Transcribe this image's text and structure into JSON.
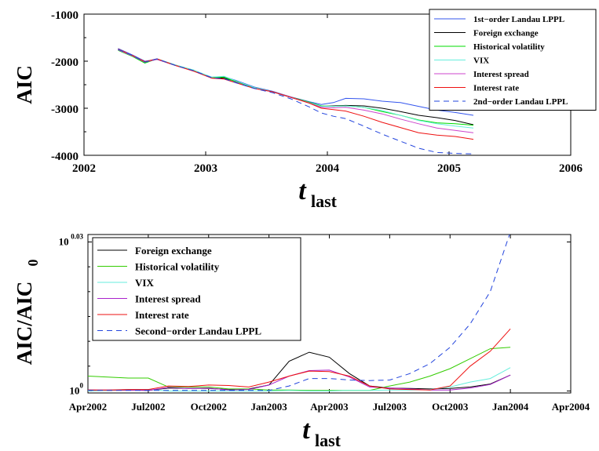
{
  "chart_data": [
    {
      "type": "line",
      "xlabel": "t",
      "xlabel_subscript": "last",
      "ylabel": "AIC",
      "xlim": [
        2002,
        2006
      ],
      "ylim": [
        -4000,
        -1000
      ],
      "xticks": [
        "2002",
        "2003",
        "2004",
        "2005",
        "2006"
      ],
      "yticks": [
        "-1000",
        "-2000",
        "-3000",
        "-4000"
      ],
      "legend_position": "top-right",
      "x": [
        2002.28,
        2002.4,
        2002.5,
        2002.6,
        2002.75,
        2002.9,
        2003.05,
        2003.15,
        2003.25,
        2003.4,
        2003.55,
        2003.7,
        2003.85,
        2003.95,
        2004.05,
        2004.15,
        2004.3,
        2004.45,
        2004.6,
        2004.75,
        2004.9,
        2005.05,
        2005.2
      ],
      "series": [
        {
          "name": "1st−order Landau LPPL",
          "color": "#3355ee",
          "dash": false,
          "values": [
            -1730,
            -1870,
            -2000,
            -1960,
            -2080,
            -2200,
            -2340,
            -2330,
            -2410,
            -2550,
            -2640,
            -2760,
            -2860,
            -2920,
            -2880,
            -2790,
            -2800,
            -2850,
            -2880,
            -2960,
            -3040,
            -3090,
            -3150
          ]
        },
        {
          "name": "Foreign exchange",
          "color": "#000000",
          "dash": false,
          "values": [
            -1750,
            -1890,
            -2020,
            -1960,
            -2090,
            -2200,
            -2350,
            -2360,
            -2430,
            -2570,
            -2650,
            -2770,
            -2880,
            -2960,
            -2950,
            -2940,
            -2950,
            -3000,
            -3070,
            -3150,
            -3200,
            -3260,
            -3350
          ]
        },
        {
          "name": "Historical volatility",
          "color": "#00dd00",
          "dash": false,
          "values": [
            -1770,
            -1900,
            -2040,
            -1950,
            -2080,
            -2190,
            -2350,
            -2340,
            -2440,
            -2560,
            -2650,
            -2760,
            -2870,
            -2950,
            -2960,
            -2950,
            -2980,
            -3070,
            -3150,
            -3250,
            -3310,
            -3330,
            -3360
          ]
        },
        {
          "name": "VIX",
          "color": "#66eedd",
          "dash": false,
          "values": [
            -1740,
            -1880,
            -2010,
            -1950,
            -2080,
            -2190,
            -2340,
            -2320,
            -2420,
            -2560,
            -2650,
            -2770,
            -2880,
            -2960,
            -2960,
            -2950,
            -2980,
            -3050,
            -3150,
            -3260,
            -3330,
            -3380,
            -3420
          ]
        },
        {
          "name": "Interest spread",
          "color": "#cc44cc",
          "dash": false,
          "values": [
            -1760,
            -1890,
            -2020,
            -1960,
            -2090,
            -2210,
            -2360,
            -2380,
            -2450,
            -2580,
            -2650,
            -2760,
            -2890,
            -2980,
            -2990,
            -2980,
            -3040,
            -3120,
            -3230,
            -3330,
            -3420,
            -3470,
            -3520
          ]
        },
        {
          "name": "Interest rate",
          "color": "#ee1111",
          "dash": false,
          "values": [
            -1740,
            -1880,
            -2010,
            -1950,
            -2090,
            -2210,
            -2360,
            -2380,
            -2460,
            -2580,
            -2650,
            -2770,
            -2890,
            -3000,
            -3030,
            -3060,
            -3170,
            -3300,
            -3410,
            -3520,
            -3570,
            -3600,
            -3660
          ]
        },
        {
          "name": "2nd−order Landau LPPL",
          "color": "#2244dd",
          "dash": true,
          "values": [
            -1750,
            -1880,
            -2020,
            -1950,
            -2090,
            -2200,
            -2350,
            -2370,
            -2460,
            -2580,
            -2670,
            -2800,
            -2970,
            -3100,
            -3170,
            -3220,
            -3380,
            -3550,
            -3700,
            -3850,
            -3940,
            -3960,
            -3970
          ]
        }
      ]
    },
    {
      "type": "line",
      "xlabel": "t",
      "xlabel_subscript": "last",
      "ylabel": "AIC/AIC",
      "ylabel_subscript": "0",
      "yscale": "log",
      "ylim_exponent": [
        -0.0004,
        0.0315
      ],
      "xlim": [
        0,
        24
      ],
      "xticks": [
        "Apr2002",
        "Jul2002",
        "Oct2002",
        "Jan2003",
        "Apr2003",
        "Jul2003",
        "Oct2003",
        "Jan2004",
        "Apr2004"
      ],
      "ytick_labels": [
        {
          "base": "10",
          "exp": "0",
          "value": 0
        },
        {
          "base": "10",
          "exp": "0.03",
          "value": 0.03
        }
      ],
      "legend_position": "top-left",
      "x": [
        0,
        1,
        2,
        3,
        4,
        5,
        6,
        7,
        8,
        9,
        10,
        11,
        12,
        13,
        14,
        15,
        16,
        17,
        18,
        19,
        20,
        21
      ],
      "series": [
        {
          "name": "Foreign exchange",
          "color": "#000000",
          "dash": false,
          "values": [
            0.0002,
            0.0001,
            0.0002,
            0.0001,
            0.0006,
            0.0005,
            0.0005,
            0.0003,
            0.0004,
            0.0012,
            0.006,
            0.0078,
            0.0068,
            0.0035,
            0.001,
            0.0006,
            0.0005,
            0.0004,
            0.0005,
            0.0008,
            0.0014,
            0.0032
          ]
        },
        {
          "name": "Historical volatility",
          "color": "#33cc00",
          "dash": false,
          "values": [
            0.003,
            0.0028,
            0.0026,
            0.0026,
            0.0008,
            0.0008,
            0.0008,
            0.0004,
            0.0004,
            0.0002,
            0.0002,
            0.0001,
            0.0001,
            0.0001,
            0.0001,
            0.001,
            0.0018,
            0.003,
            0.0045,
            0.0065,
            0.0085,
            0.0088
          ]
        },
        {
          "name": "VIX",
          "color": "#66eedd",
          "dash": false,
          "values": [
            0.0,
            0.0001,
            0.0003,
            0.0003,
            0.0,
            0.0,
            0.0,
            0.0,
            0.0,
            0.0,
            0.0001,
            0.0,
            0.0,
            0.0001,
            0.0001,
            0.0002,
            0.0002,
            0.0003,
            0.0008,
            0.0018,
            0.0025,
            0.0047
          ]
        },
        {
          "name": "Interest spread",
          "color": "#aa22cc",
          "dash": false,
          "values": [
            0.0002,
            0.0002,
            0.0002,
            0.0001,
            0.0007,
            0.0005,
            0.0006,
            0.0002,
            0.0003,
            0.0012,
            0.003,
            0.0041,
            0.0042,
            0.0028,
            0.0008,
            0.0006,
            0.0004,
            0.0002,
            0.0002,
            0.0006,
            0.0013,
            0.0032
          ]
        },
        {
          "name": "Interest rate",
          "color": "#ee1111",
          "dash": false,
          "values": [
            0.0002,
            0.0002,
            0.0003,
            0.0003,
            0.001,
            0.0009,
            0.0012,
            0.0011,
            0.0008,
            0.0018,
            0.003,
            0.004,
            0.0039,
            0.003,
            0.001,
            0.0004,
            0.0003,
            0.0002,
            0.001,
            0.005,
            0.008,
            0.0125
          ]
        },
        {
          "name": "Second−order Landau LPPL",
          "color": "#2244dd",
          "dash": true,
          "values": [
            0.0001,
            0.0001,
            0.0001,
            0.0001,
            0.0001,
            0.0001,
            0.0001,
            0.0001,
            0.0001,
            0.0001,
            0.001,
            0.0025,
            0.0025,
            0.0022,
            0.0021,
            0.0022,
            0.0035,
            0.0055,
            0.0088,
            0.0135,
            0.02,
            0.032
          ]
        }
      ]
    }
  ]
}
